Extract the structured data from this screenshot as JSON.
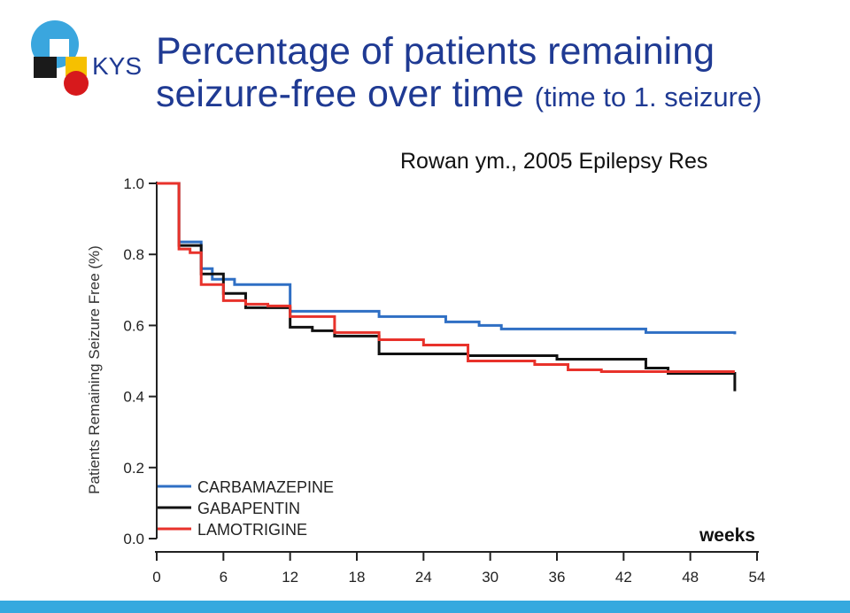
{
  "logo": {
    "text": "KYS"
  },
  "title": {
    "line1": "Percentage of patients remaining",
    "line2_main": "seizure-free over time",
    "line2_note": "(time to 1. seizure)"
  },
  "source": "Rowan ym., 2005 Epilepsy Res",
  "colors": {
    "title": "#1f3a93",
    "carbamazepine": "#2f6fc4",
    "gabapentin": "#111111",
    "lamotrigine": "#e8322b",
    "footer_bar": "#35a9df"
  },
  "chart_data": {
    "type": "line",
    "title": "",
    "xlabel": "weeks",
    "ylabel": "Patients Remaining Seizure Free (%)",
    "xlim": [
      0,
      54
    ],
    "ylim": [
      0,
      1.0
    ],
    "xticks": [
      "0",
      "6",
      "12",
      "18",
      "24",
      "30",
      "36",
      "42",
      "48",
      "54"
    ],
    "yticks": [
      "0.0",
      "0.2",
      "0.4",
      "0.6",
      "0.8",
      "1.0"
    ],
    "legend_position": "bottom-left",
    "series": [
      {
        "name": "CARBAMAZEPINE",
        "color": "#2f6fc4",
        "x": [
          0,
          2,
          4,
          5,
          7,
          12,
          20,
          26,
          29,
          31,
          44,
          52
        ],
        "y": [
          1.0,
          0.835,
          0.76,
          0.73,
          0.715,
          0.64,
          0.625,
          0.61,
          0.6,
          0.59,
          0.58,
          0.575
        ]
      },
      {
        "name": "GABAPENTIN",
        "color": "#111111",
        "x": [
          0,
          2,
          4,
          6,
          8,
          12,
          14,
          16,
          20,
          28,
          36,
          44,
          46,
          52,
          52
        ],
        "y": [
          1.0,
          0.825,
          0.745,
          0.69,
          0.65,
          0.595,
          0.585,
          0.57,
          0.52,
          0.515,
          0.505,
          0.48,
          0.465,
          0.465,
          0.415
        ]
      },
      {
        "name": "LAMOTRIGINE",
        "color": "#e8322b",
        "x": [
          0,
          2,
          3,
          4,
          6,
          8,
          10,
          12,
          16,
          20,
          24,
          28,
          34,
          37,
          40,
          46,
          52
        ],
        "y": [
          1.0,
          0.815,
          0.805,
          0.715,
          0.67,
          0.66,
          0.655,
          0.625,
          0.58,
          0.56,
          0.545,
          0.5,
          0.49,
          0.475,
          0.47,
          0.47,
          0.47
        ]
      }
    ]
  }
}
